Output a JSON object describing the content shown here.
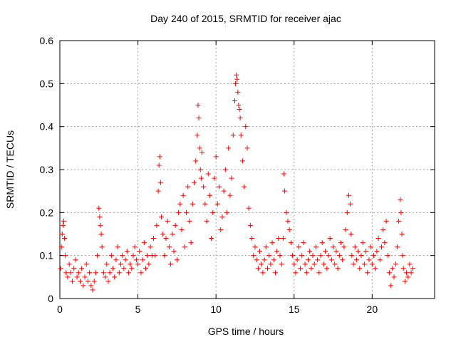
{
  "chart_data": {
    "type": "scatter",
    "title": "Day 240 of 2015, SRMTID for receiver ajac",
    "xlabel": "GPS time / hours",
    "ylabel": "SRMTID / TECUs",
    "xlim": [
      0,
      24
    ],
    "ylim": [
      0,
      0.6
    ],
    "xticks": [
      0,
      5,
      10,
      15,
      20
    ],
    "xtick_labels": [
      "0",
      "5",
      "10",
      "15",
      "20"
    ],
    "yticks": [
      0,
      0.1,
      0.2,
      0.3,
      0.4,
      0.5,
      0.6
    ],
    "ytick_labels": [
      "0",
      "0.1",
      "0.2",
      "0.3",
      "0.4",
      "0.5",
      "0.6"
    ],
    "grid": true,
    "marker": "+",
    "color": "#ff0000",
    "series": [
      {
        "name": "SRMTID",
        "x": [
          0.05,
          0.1,
          0.15,
          0.2,
          0.25,
          0.3,
          0.35,
          0.4,
          0.5,
          0.6,
          0.7,
          0.8,
          0.9,
          1.0,
          1.1,
          1.2,
          1.3,
          1.4,
          1.5,
          1.6,
          1.7,
          1.8,
          1.9,
          2.0,
          2.1,
          2.2,
          2.3,
          2.4,
          2.5,
          2.55,
          2.6,
          2.65,
          2.7,
          2.8,
          2.9,
          3.0,
          3.1,
          3.2,
          3.3,
          3.4,
          3.5,
          3.6,
          3.7,
          3.8,
          3.9,
          4.0,
          4.1,
          4.2,
          4.3,
          4.4,
          4.5,
          4.6,
          4.7,
          4.8,
          4.9,
          5.0,
          5.1,
          5.2,
          5.3,
          5.4,
          5.5,
          5.6,
          5.7,
          5.8,
          5.9,
          6.0,
          6.1,
          6.2,
          6.3,
          6.35,
          6.4,
          6.45,
          6.5,
          6.6,
          6.7,
          6.8,
          6.9,
          7.0,
          7.1,
          7.2,
          7.3,
          7.4,
          7.5,
          7.6,
          7.7,
          7.8,
          7.9,
          8.0,
          8.1,
          8.2,
          8.3,
          8.4,
          8.5,
          8.6,
          8.7,
          8.8,
          8.85,
          8.9,
          8.95,
          9.0,
          9.05,
          9.1,
          9.2,
          9.3,
          9.4,
          9.5,
          9.6,
          9.7,
          9.8,
          9.9,
          10.0,
          10.1,
          10.2,
          10.3,
          10.4,
          10.5,
          10.6,
          10.7,
          10.8,
          10.9,
          11.0,
          11.1,
          11.2,
          11.25,
          11.3,
          11.35,
          11.4,
          11.45,
          11.5,
          11.55,
          11.6,
          11.7,
          11.8,
          11.9,
          12.0,
          12.1,
          12.2,
          12.3,
          12.4,
          12.5,
          12.6,
          12.7,
          12.8,
          12.9,
          13.0,
          13.1,
          13.2,
          13.3,
          13.4,
          13.5,
          13.6,
          13.7,
          13.8,
          13.9,
          14.0,
          14.1,
          14.2,
          14.3,
          14.35,
          14.4,
          14.5,
          14.6,
          14.7,
          14.8,
          14.9,
          15.0,
          15.1,
          15.2,
          15.3,
          15.4,
          15.5,
          15.6,
          15.7,
          15.8,
          15.9,
          16.0,
          16.1,
          16.2,
          16.3,
          16.4,
          16.5,
          16.6,
          16.7,
          16.8,
          16.9,
          17.0,
          17.1,
          17.2,
          17.3,
          17.4,
          17.5,
          17.6,
          17.7,
          17.8,
          17.9,
          18.0,
          18.1,
          18.2,
          18.3,
          18.4,
          18.5,
          18.6,
          18.65,
          18.7,
          18.8,
          18.9,
          19.0,
          19.1,
          19.2,
          19.3,
          19.4,
          19.5,
          19.6,
          19.7,
          19.8,
          19.9,
          20.0,
          20.1,
          20.2,
          20.3,
          20.4,
          20.5,
          20.6,
          20.7,
          20.8,
          20.9,
          21.0,
          21.1,
          21.2,
          21.3,
          21.4,
          21.5,
          21.6,
          21.7,
          21.8,
          21.85,
          21.9,
          21.95,
          22.0,
          22.1,
          22.2,
          22.3,
          22.4,
          22.5,
          22.6
        ],
        "y": [
          0.07,
          0.12,
          0.15,
          0.17,
          0.18,
          0.14,
          0.1,
          0.06,
          0.05,
          0.08,
          0.06,
          0.04,
          0.07,
          0.09,
          0.05,
          0.06,
          0.04,
          0.07,
          0.03,
          0.05,
          0.08,
          0.04,
          0.06,
          0.03,
          0.02,
          0.04,
          0.06,
          0.1,
          0.21,
          0.19,
          0.17,
          0.15,
          0.12,
          0.06,
          0.05,
          0.08,
          0.04,
          0.06,
          0.1,
          0.07,
          0.05,
          0.09,
          0.12,
          0.06,
          0.08,
          0.1,
          0.07,
          0.09,
          0.11,
          0.06,
          0.08,
          0.07,
          0.1,
          0.12,
          0.09,
          0.08,
          0.11,
          0.06,
          0.09,
          0.13,
          0.07,
          0.1,
          0.08,
          0.12,
          0.1,
          0.14,
          0.1,
          0.17,
          0.25,
          0.31,
          0.33,
          0.27,
          0.19,
          0.15,
          0.1,
          0.14,
          0.18,
          0.12,
          0.08,
          0.15,
          0.11,
          0.17,
          0.09,
          0.2,
          0.22,
          0.16,
          0.24,
          0.12,
          0.2,
          0.26,
          0.18,
          0.13,
          0.22,
          0.27,
          0.32,
          0.38,
          0.45,
          0.42,
          0.35,
          0.3,
          0.28,
          0.34,
          0.26,
          0.22,
          0.18,
          0.29,
          0.24,
          0.14,
          0.2,
          0.28,
          0.33,
          0.22,
          0.26,
          0.16,
          0.19,
          0.25,
          0.3,
          0.2,
          0.35,
          0.24,
          0.28,
          0.38,
          0.46,
          0.5,
          0.52,
          0.51,
          0.48,
          0.45,
          0.44,
          0.42,
          0.38,
          0.32,
          0.26,
          0.4,
          0.35,
          0.21,
          0.17,
          0.14,
          0.1,
          0.12,
          0.09,
          0.07,
          0.11,
          0.08,
          0.06,
          0.09,
          0.12,
          0.07,
          0.1,
          0.08,
          0.13,
          0.09,
          0.06,
          0.11,
          0.14,
          0.1,
          0.08,
          0.14,
          0.29,
          0.25,
          0.2,
          0.18,
          0.16,
          0.13,
          0.1,
          0.08,
          0.06,
          0.09,
          0.12,
          0.07,
          0.1,
          0.13,
          0.08,
          0.06,
          0.09,
          0.11,
          0.07,
          0.1,
          0.08,
          0.12,
          0.09,
          0.06,
          0.1,
          0.13,
          0.08,
          0.11,
          0.07,
          0.1,
          0.14,
          0.09,
          0.12,
          0.08,
          0.11,
          0.07,
          0.1,
          0.13,
          0.09,
          0.12,
          0.16,
          0.2,
          0.24,
          0.22,
          0.15,
          0.1,
          0.08,
          0.12,
          0.09,
          0.11,
          0.07,
          0.1,
          0.13,
          0.08,
          0.11,
          0.06,
          0.09,
          0.12,
          0.08,
          0.1,
          0.07,
          0.11,
          0.14,
          0.09,
          0.12,
          0.16,
          0.13,
          0.18,
          0.1,
          0.06,
          0.03,
          0.07,
          0.05,
          0.08,
          0.12,
          0.18,
          0.23,
          0.2,
          0.15,
          0.1,
          0.07,
          0.04,
          0.06,
          0.05,
          0.08,
          0.06,
          0.07
        ]
      }
    ]
  }
}
